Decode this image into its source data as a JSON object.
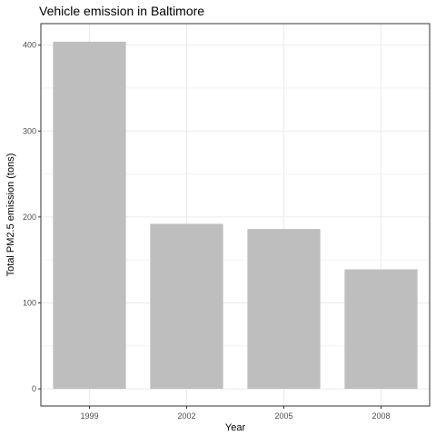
{
  "chart_data": {
    "type": "bar",
    "title": "Vehicle emission in Baltimore",
    "xlabel": "Year",
    "ylabel": "Total PM2.5 emission (tons)",
    "categories": [
      "1999",
      "2002",
      "2005",
      "2008"
    ],
    "values": [
      404,
      192,
      186,
      139
    ],
    "ylim": [
      -20,
      425
    ],
    "yticks": [
      0,
      100,
      200,
      300,
      400
    ],
    "grid": true,
    "bar_color": "#bebebe",
    "grid_color": "#ebebeb",
    "border_color": "#333333"
  }
}
